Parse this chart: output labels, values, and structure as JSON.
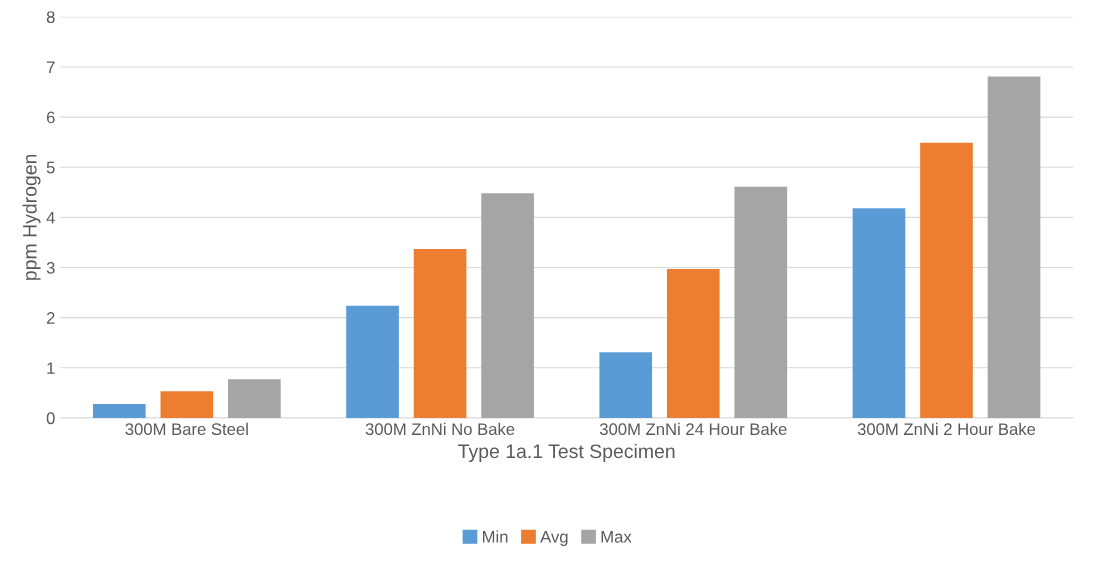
{
  "chart_data": {
    "type": "bar",
    "xlabel": "Type 1a.1 Test Specimen",
    "ylabel": "ppm Hydrogen",
    "categories": [
      "300M Bare Steel",
      "300M ZnNi No Bake",
      "300M ZnNi 24 Hour Bake",
      "300M ZnNi 2 Hour Bake"
    ],
    "series": [
      {
        "name": "Min",
        "color": "#5b9bd5",
        "values": [
          0.28,
          2.24,
          1.31,
          4.18
        ]
      },
      {
        "name": "Avg",
        "color": "#ed7d31",
        "values": [
          0.53,
          3.37,
          2.97,
          5.49
        ]
      },
      {
        "name": "Max",
        "color": "#a5a5a5",
        "values": [
          0.77,
          4.48,
          4.61,
          6.81
        ]
      }
    ],
    "ylim": [
      0,
      8
    ],
    "yticks": [
      0,
      1,
      2,
      3,
      4,
      5,
      6,
      7,
      8
    ],
    "grid": "y",
    "legend": "bottom"
  }
}
